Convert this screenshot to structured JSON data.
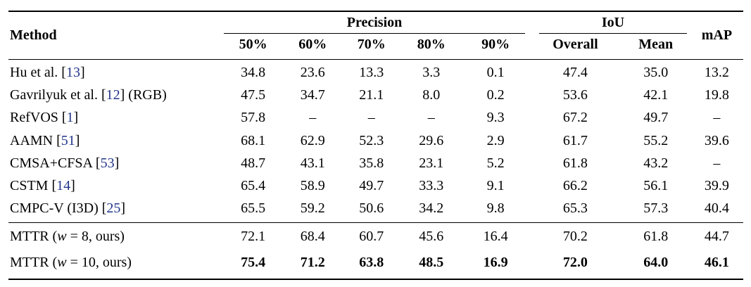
{
  "table": {
    "header": {
      "method_label": "Method",
      "precision_label": "Precision",
      "iou_label": "IoU",
      "map_label": "mAP",
      "precision_cols": [
        "50%",
        "60%",
        "70%",
        "80%",
        "90%"
      ],
      "iou_cols": [
        "Overall",
        "Mean"
      ]
    },
    "colors": {
      "citation_link": "#22368a",
      "text": "#000000",
      "background": "#ffffff",
      "rule": "#000000"
    },
    "groups": [
      {
        "rows": [
          {
            "method": [
              {
                "t": "Hu et al. [",
                "s": "plain"
              },
              {
                "t": "13",
                "s": "cite"
              },
              {
                "t": "]",
                "s": "plain"
              }
            ],
            "values": [
              "34.8",
              "23.6",
              "13.3",
              "3.3",
              "0.1",
              "47.4",
              "35.0",
              "13.2"
            ],
            "bold_values": false
          },
          {
            "method": [
              {
                "t": "Gavrilyuk et al. [",
                "s": "plain"
              },
              {
                "t": "12",
                "s": "cite"
              },
              {
                "t": "] (RGB)",
                "s": "plain"
              }
            ],
            "values": [
              "47.5",
              "34.7",
              "21.1",
              "8.0",
              "0.2",
              "53.6",
              "42.1",
              "19.8"
            ],
            "bold_values": false
          },
          {
            "method": [
              {
                "t": "RefVOS [",
                "s": "plain"
              },
              {
                "t": "1",
                "s": "cite"
              },
              {
                "t": "]",
                "s": "plain"
              }
            ],
            "values": [
              "57.8",
              "–",
              "–",
              "–",
              "9.3",
              "67.2",
              "49.7",
              "–"
            ],
            "bold_values": false
          },
          {
            "method": [
              {
                "t": "AAMN [",
                "s": "plain"
              },
              {
                "t": "51",
                "s": "cite"
              },
              {
                "t": "]",
                "s": "plain"
              }
            ],
            "values": [
              "68.1",
              "62.9",
              "52.3",
              "29.6",
              "2.9",
              "61.7",
              "55.2",
              "39.6"
            ],
            "bold_values": false
          },
          {
            "method": [
              {
                "t": "CMSA+CFSA [",
                "s": "plain"
              },
              {
                "t": "53",
                "s": "cite"
              },
              {
                "t": "]",
                "s": "plain"
              }
            ],
            "values": [
              "48.7",
              "43.1",
              "35.8",
              "23.1",
              "5.2",
              "61.8",
              "43.2",
              "–"
            ],
            "bold_values": false
          },
          {
            "method": [
              {
                "t": "CSTM [",
                "s": "plain"
              },
              {
                "t": "14",
                "s": "cite"
              },
              {
                "t": "]",
                "s": "plain"
              }
            ],
            "values": [
              "65.4",
              "58.9",
              "49.7",
              "33.3",
              "9.1",
              "66.2",
              "56.1",
              "39.9"
            ],
            "bold_values": false
          },
          {
            "method": [
              {
                "t": "CMPC-V (I3D) [",
                "s": "plain"
              },
              {
                "t": "25",
                "s": "cite"
              },
              {
                "t": "]",
                "s": "plain"
              }
            ],
            "values": [
              "65.5",
              "59.2",
              "50.6",
              "34.2",
              "9.8",
              "65.3",
              "57.3",
              "40.4"
            ],
            "bold_values": false
          }
        ]
      },
      {
        "rows": [
          {
            "method": [
              {
                "t": "MTTR (",
                "s": "plain"
              },
              {
                "t": "w",
                "s": "mathvar"
              },
              {
                "t": " = 8, ours)",
                "s": "plain"
              }
            ],
            "values": [
              "72.1",
              "68.4",
              "60.7",
              "45.6",
              "16.4",
              "70.2",
              "61.8",
              "44.7"
            ],
            "bold_values": false
          },
          {
            "method": [
              {
                "t": "MTTR (",
                "s": "plain"
              },
              {
                "t": "w",
                "s": "mathvar"
              },
              {
                "t": " = 10, ours)",
                "s": "plain"
              }
            ],
            "values": [
              "75.4",
              "71.2",
              "63.8",
              "48.5",
              "16.9",
              "72.0",
              "64.0",
              "46.1"
            ],
            "bold_values": true
          }
        ]
      }
    ]
  }
}
